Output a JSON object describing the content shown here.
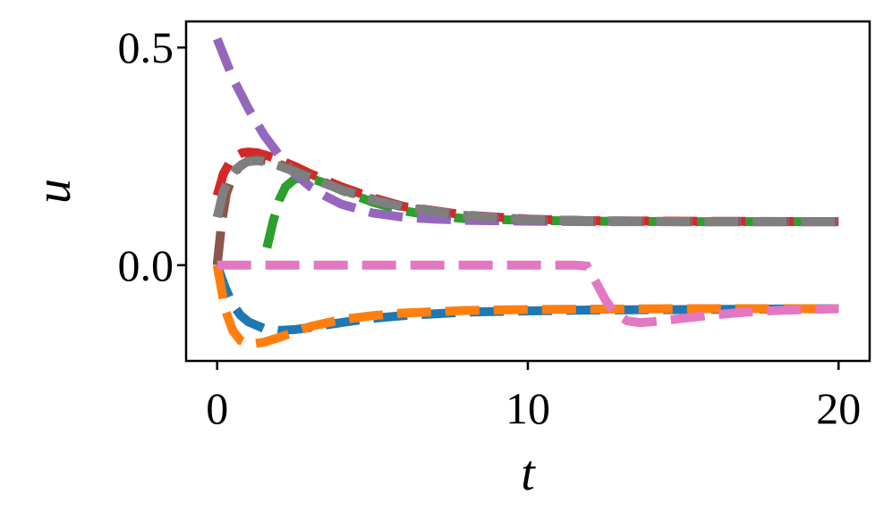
{
  "chart_data": {
    "type": "line",
    "title": "",
    "xlabel": "t",
    "ylabel": "u",
    "xlim": [
      -1,
      21
    ],
    "ylim": [
      -0.22,
      0.56
    ],
    "xticks": [
      0,
      10,
      20
    ],
    "xtick_labels": [
      "0",
      "10",
      "20"
    ],
    "yticks": [
      0.0,
      0.5
    ],
    "ytick_labels": [
      "0.0",
      "0.5"
    ],
    "grid": false,
    "legend": "none",
    "series": [
      {
        "color": "#1f77b4",
        "x": [
          0,
          0.25,
          0.5,
          0.75,
          1,
          1.5,
          2,
          2.5,
          3,
          4,
          5,
          6,
          8,
          10,
          12,
          15,
          20
        ],
        "y": [
          0,
          -0.05,
          -0.09,
          -0.115,
          -0.13,
          -0.145,
          -0.15,
          -0.148,
          -0.143,
          -0.132,
          -0.122,
          -0.116,
          -0.108,
          -0.105,
          -0.103,
          -0.102,
          -0.1
        ]
      },
      {
        "color": "#ff7f0e",
        "x": [
          0,
          0.25,
          0.5,
          0.75,
          1,
          1.5,
          2,
          2.5,
          3,
          4,
          5,
          6,
          8,
          10,
          12,
          15,
          20
        ],
        "y": [
          0,
          -0.1,
          -0.15,
          -0.173,
          -0.182,
          -0.177,
          -0.166,
          -0.153,
          -0.141,
          -0.125,
          -0.116,
          -0.11,
          -0.104,
          -0.102,
          -0.101,
          -0.1,
          -0.1
        ]
      },
      {
        "color": "#2ca02c",
        "x": [
          1.6,
          1.8,
          2,
          2.2,
          2.5,
          2.8,
          3.2,
          3.6,
          4,
          5,
          6,
          7,
          8,
          10,
          12,
          15,
          20
        ],
        "y": [
          0.04,
          0.1,
          0.15,
          0.18,
          0.198,
          0.2,
          0.195,
          0.185,
          0.172,
          0.145,
          0.125,
          0.113,
          0.107,
          0.103,
          0.101,
          0.1,
          0.1
        ]
      },
      {
        "color": "#d62728",
        "x": [
          0,
          0.2,
          0.4,
          0.6,
          0.8,
          1,
          1.3,
          1.6,
          2,
          2.5,
          3,
          4,
          5,
          6,
          8,
          10,
          12,
          15,
          20
        ],
        "y": [
          0.16,
          0.21,
          0.235,
          0.25,
          0.258,
          0.26,
          0.258,
          0.252,
          0.242,
          0.227,
          0.21,
          0.18,
          0.155,
          0.135,
          0.115,
          0.106,
          0.102,
          0.101,
          0.1
        ]
      },
      {
        "color": "#9467bd",
        "x": [
          0,
          0.5,
          1,
          1.5,
          2,
          2.5,
          3,
          3.5,
          4,
          5,
          6,
          7,
          8,
          10,
          12,
          15,
          20
        ],
        "y": [
          0.52,
          0.43,
          0.36,
          0.3,
          0.252,
          0.21,
          0.18,
          0.158,
          0.14,
          0.12,
          0.11,
          0.106,
          0.103,
          0.101,
          0.1,
          0.1,
          0.1
        ]
      },
      {
        "color": "#8c564b",
        "x": [
          0,
          0.15,
          0.3,
          0.5,
          0.7,
          1,
          1.3,
          1.6,
          2,
          2.5,
          3,
          4,
          5,
          6,
          8,
          10,
          12,
          15,
          20
        ],
        "y": [
          0,
          0.1,
          0.165,
          0.205,
          0.225,
          0.24,
          0.243,
          0.24,
          0.232,
          0.218,
          0.203,
          0.175,
          0.152,
          0.134,
          0.114,
          0.105,
          0.102,
          0.1,
          0.1
        ]
      },
      {
        "color": "#e377c2",
        "x": [
          0,
          2,
          4,
          6,
          8,
          10,
          11.5,
          11.9,
          12.2,
          12.5,
          12.8,
          13.2,
          13.6,
          14,
          15,
          16,
          17,
          18,
          20
        ],
        "y": [
          0,
          0,
          0,
          0,
          0,
          0,
          0,
          -0.002,
          -0.04,
          -0.08,
          -0.11,
          -0.128,
          -0.132,
          -0.13,
          -0.122,
          -0.114,
          -0.108,
          -0.104,
          -0.1
        ]
      },
      {
        "color": "#7f7f7f",
        "x": [
          0,
          0.2,
          0.4,
          0.6,
          0.8,
          1,
          1.3,
          1.6,
          2,
          2.5,
          3,
          4,
          5,
          6,
          8,
          10,
          12,
          15,
          20
        ],
        "y": [
          0.11,
          0.17,
          0.2,
          0.22,
          0.232,
          0.238,
          0.24,
          0.237,
          0.228,
          0.215,
          0.2,
          0.173,
          0.15,
          0.133,
          0.114,
          0.105,
          0.102,
          0.1,
          0.1
        ]
      }
    ]
  }
}
